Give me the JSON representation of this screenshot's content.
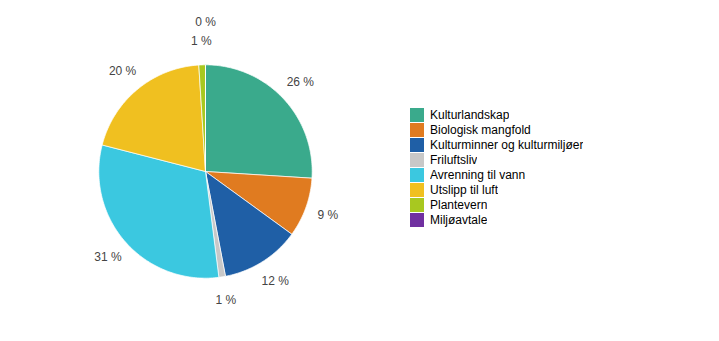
{
  "chart_data": {
    "type": "pie",
    "categories": [
      "Kulturlandskap",
      "Biologisk mangfold",
      "Kulturminner og kulturmiljøer",
      "Friluftsliv",
      "Avrenning til vann",
      "Utslipp til luft",
      "Plantevern",
      "Miljøavtale"
    ],
    "values": [
      26,
      9,
      12,
      1,
      31,
      20,
      1,
      0
    ],
    "value_labels": [
      "26 %",
      "9 %",
      "12 %",
      "1 %",
      "31 %",
      "20 %",
      "1 %",
      "0 %"
    ],
    "colors": [
      "#3aaa8c",
      "#e07b20",
      "#1f5fa6",
      "#c8c8c8",
      "#3bc8e0",
      "#f0c020",
      "#a8c820",
      "#7030a0"
    ],
    "data_labels": true,
    "legend": "right"
  }
}
